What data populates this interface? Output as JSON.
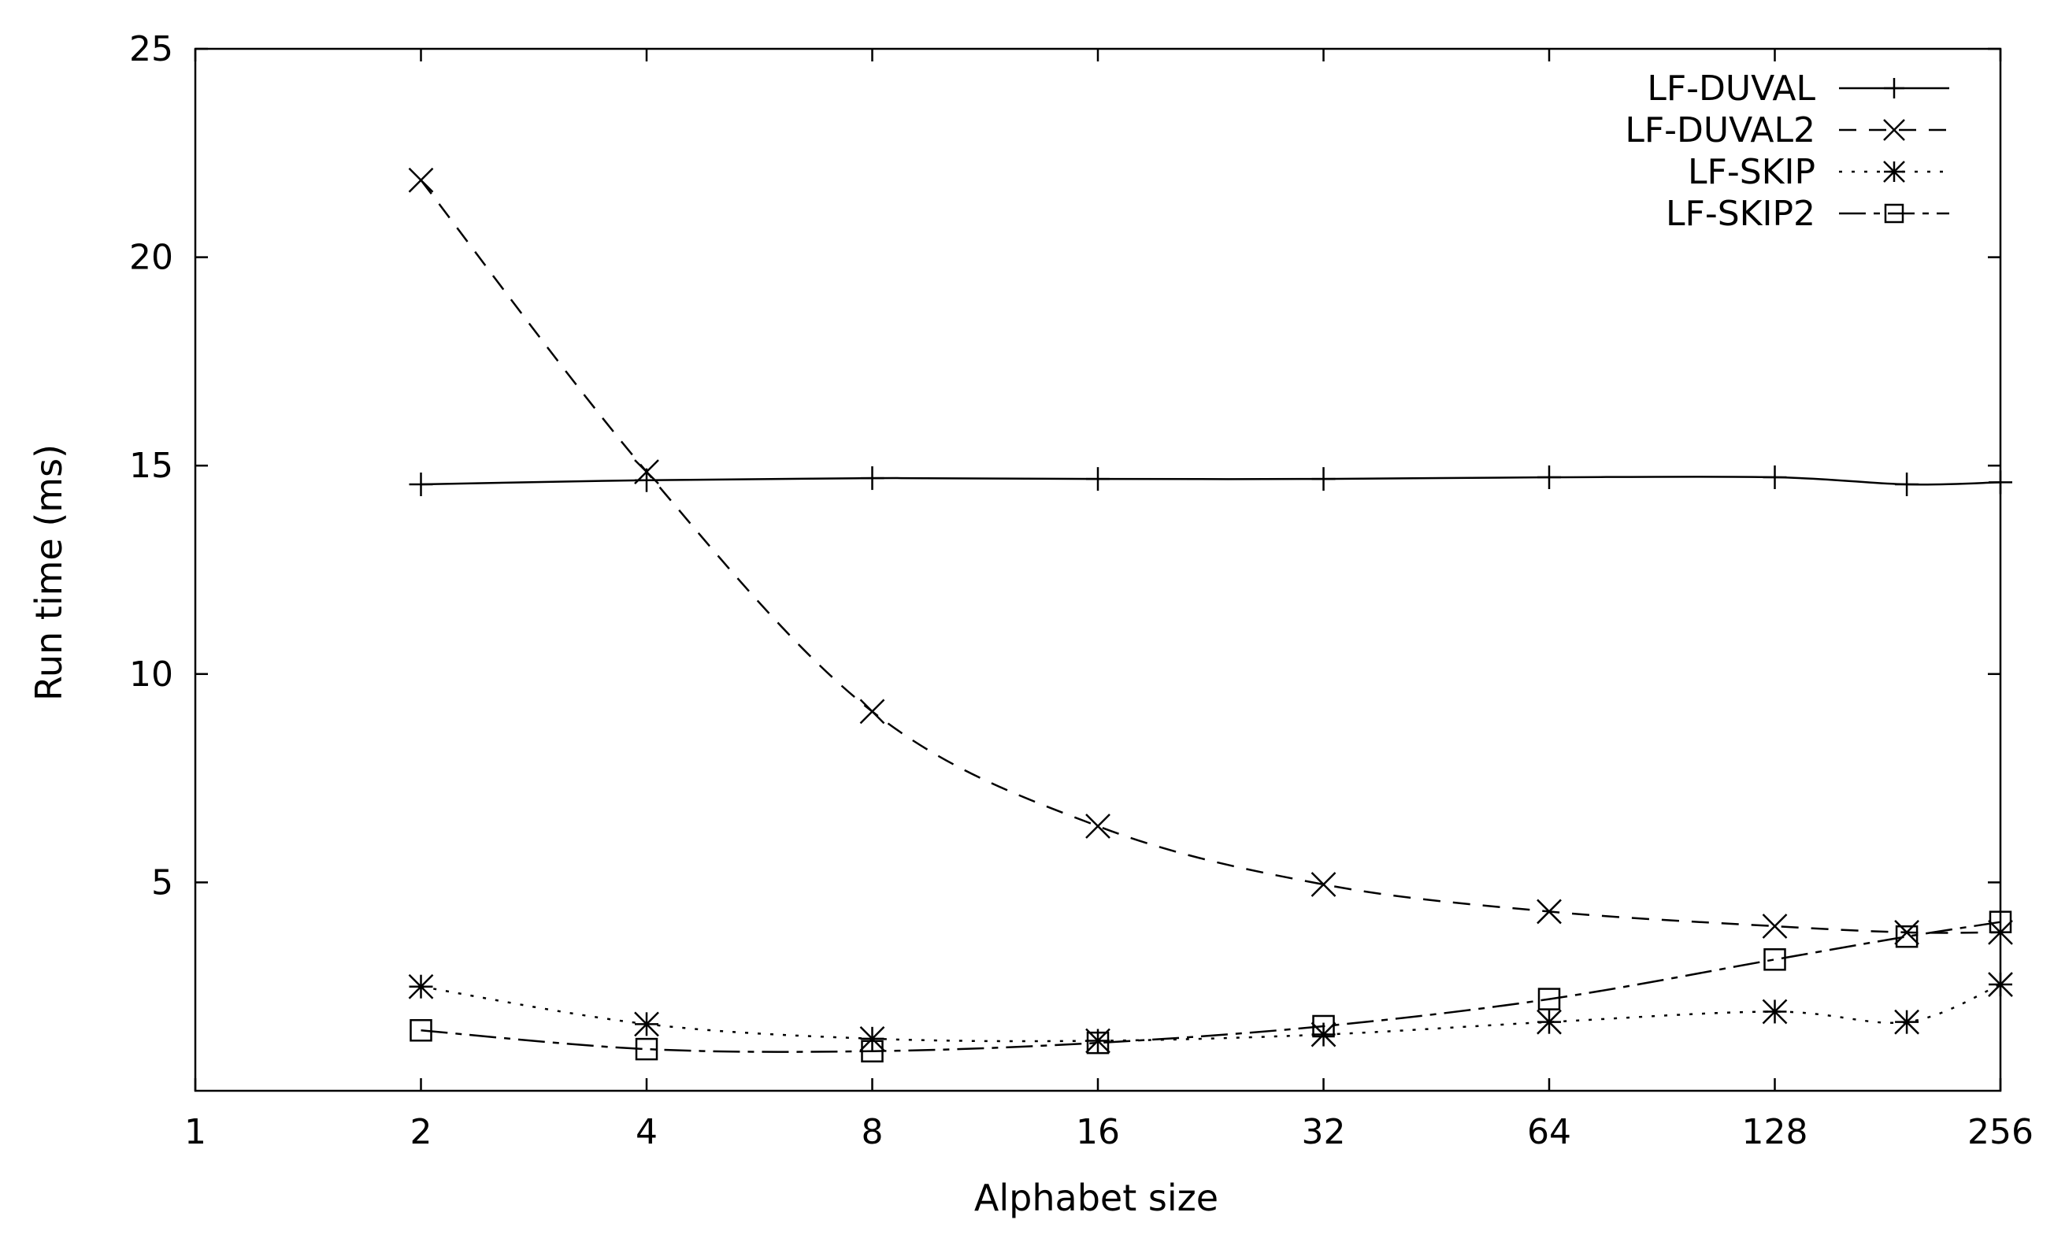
{
  "chart_data": {
    "type": "line",
    "title": "",
    "xlabel": "Alphabet size",
    "ylabel": "Run time (ms)",
    "x_scale": "log2",
    "xlim": [
      1,
      256
    ],
    "ylim": [
      0,
      25
    ],
    "x_ticks": [
      1,
      2,
      4,
      8,
      16,
      32,
      64,
      128,
      256
    ],
    "y_ticks": [
      5,
      10,
      15,
      20,
      25
    ],
    "grid": false,
    "legend_position": "top-right",
    "series": [
      {
        "name": "LF-DUVAL",
        "line_style": "solid",
        "marker": "plus",
        "x": [
          2,
          4,
          8,
          16,
          32,
          64,
          128,
          192,
          256
        ],
        "y": [
          14.55,
          14.65,
          14.7,
          14.68,
          14.68,
          14.72,
          14.72,
          14.55,
          14.6
        ]
      },
      {
        "name": "LF-DUVAL2",
        "line_style": "dashed",
        "marker": "x",
        "x": [
          2,
          4,
          8,
          16,
          32,
          64,
          128,
          192,
          256
        ],
        "y": [
          21.85,
          14.85,
          9.1,
          6.35,
          4.95,
          4.3,
          3.95,
          3.8,
          3.8
        ]
      },
      {
        "name": "LF-SKIP",
        "line_style": "dotted",
        "marker": "star",
        "x": [
          2,
          4,
          8,
          16,
          32,
          64,
          128,
          192,
          256
        ],
        "y": [
          2.5,
          1.6,
          1.25,
          1.2,
          1.35,
          1.65,
          1.9,
          1.65,
          2.55
        ]
      },
      {
        "name": "LF-SKIP2",
        "line_style": "long-dash-short-dash",
        "marker": "square",
        "x": [
          2,
          4,
          8,
          16,
          32,
          64,
          128,
          192,
          256
        ],
        "y": [
          1.45,
          1.0,
          0.95,
          1.15,
          1.55,
          2.2,
          3.15,
          3.7,
          4.05
        ]
      }
    ]
  }
}
